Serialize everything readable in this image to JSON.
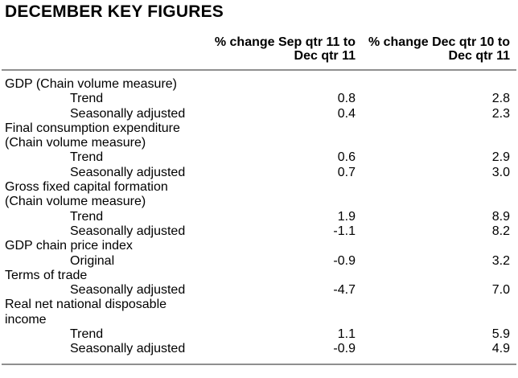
{
  "title": "DECEMBER KEY FIGURES",
  "columns": [
    {
      "label": "% change Sep qtr 11 to Dec qtr 11",
      "line1": "% change Sep qtr 11 to",
      "line2": "Dec qtr 11"
    },
    {
      "label": "% change Dec qtr 10 to Dec qtr 11",
      "line1": "% change Dec qtr 10 to",
      "line2": "Dec qtr 11"
    }
  ],
  "rows": [
    {
      "label": "GDP (Chain volume measure)",
      "sep_to_dec": "",
      "dec_to_dec": ""
    },
    {
      "label": "Trend",
      "sep_to_dec": "0.8",
      "dec_to_dec": "2.8"
    },
    {
      "label": "Seasonally adjusted",
      "sep_to_dec": "0.4",
      "dec_to_dec": "2.3"
    },
    {
      "label": "Final consumption expenditure",
      "sep_to_dec": "",
      "dec_to_dec": ""
    },
    {
      "label": "(Chain volume measure)",
      "sep_to_dec": "",
      "dec_to_dec": ""
    },
    {
      "label": "Trend",
      "sep_to_dec": "0.6",
      "dec_to_dec": "2.9"
    },
    {
      "label": "Seasonally adjusted",
      "sep_to_dec": "0.7",
      "dec_to_dec": "3.0"
    },
    {
      "label": "Gross fixed capital formation",
      "sep_to_dec": "",
      "dec_to_dec": ""
    },
    {
      "label": "(Chain volume measure)",
      "sep_to_dec": "",
      "dec_to_dec": ""
    },
    {
      "label": "Trend",
      "sep_to_dec": "1.9",
      "dec_to_dec": "8.9"
    },
    {
      "label": "Seasonally adjusted",
      "sep_to_dec": "-1.1",
      "dec_to_dec": "8.2"
    },
    {
      "label": "GDP chain price index",
      "sep_to_dec": "",
      "dec_to_dec": ""
    },
    {
      "label": "Original",
      "sep_to_dec": "-0.9",
      "dec_to_dec": "3.2"
    },
    {
      "label": "Terms of trade",
      "sep_to_dec": "",
      "dec_to_dec": ""
    },
    {
      "label": "Seasonally adjusted",
      "sep_to_dec": "-4.7",
      "dec_to_dec": "7.0"
    },
    {
      "label": "Real net national disposable",
      "sep_to_dec": "",
      "dec_to_dec": ""
    },
    {
      "label": "income",
      "sep_to_dec": "",
      "dec_to_dec": ""
    },
    {
      "label": "Trend",
      "sep_to_dec": "1.1",
      "dec_to_dec": "5.9"
    },
    {
      "label": "Seasonally adjusted",
      "sep_to_dec": "-0.9",
      "dec_to_dec": "4.9"
    }
  ],
  "colors": {
    "text": "#000000",
    "rule": "#8f8f8f",
    "background": "#ffffff"
  }
}
